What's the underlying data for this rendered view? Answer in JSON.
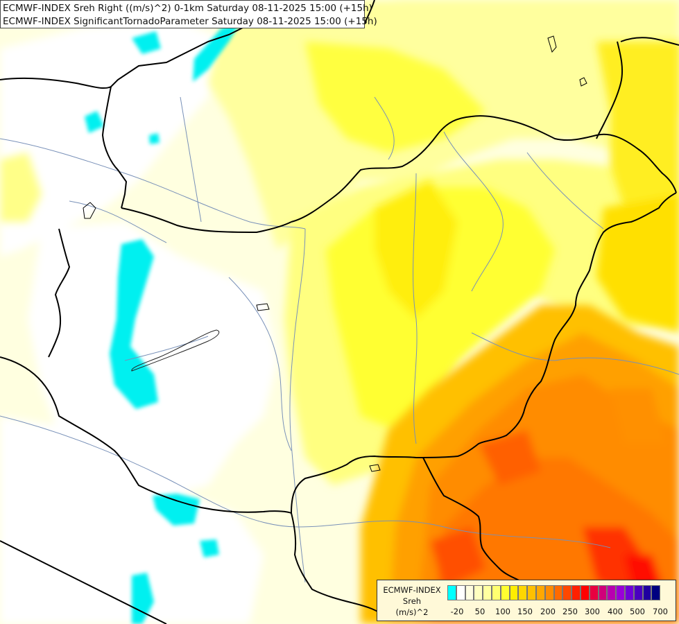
{
  "header": {
    "line1": "ECMWF-INDEX Sreh Right ((m/s)^2) 0-1km Saturday 08-11-2025 15:00 (+15h)",
    "line2": "ECMWF-INDEX SignificantTornadoParameter Saturday 08-11-2025 15:00 (+15h)"
  },
  "legend": {
    "source": "ECMWF-INDEX",
    "parameter": "Sreh",
    "unit": "(m/s)^2",
    "colors": [
      "#00ffff",
      "#ffffff",
      "#fffde0",
      "#ffffc0",
      "#ffffa0",
      "#ffff70",
      "#ffff30",
      "#ffee00",
      "#ffd700",
      "#ffc000",
      "#ffa800",
      "#ff8c00",
      "#ff6a00",
      "#ff4800",
      "#ff2000",
      "#ff0000",
      "#e80040",
      "#d0007a",
      "#b800b0",
      "#9a00d8",
      "#7000d8",
      "#4a00c0",
      "#2000a0",
      "#000080"
    ],
    "tick_labels": [
      "-20",
      "50",
      "100",
      "150",
      "200",
      "250",
      "300",
      "400",
      "500",
      "700"
    ]
  }
}
